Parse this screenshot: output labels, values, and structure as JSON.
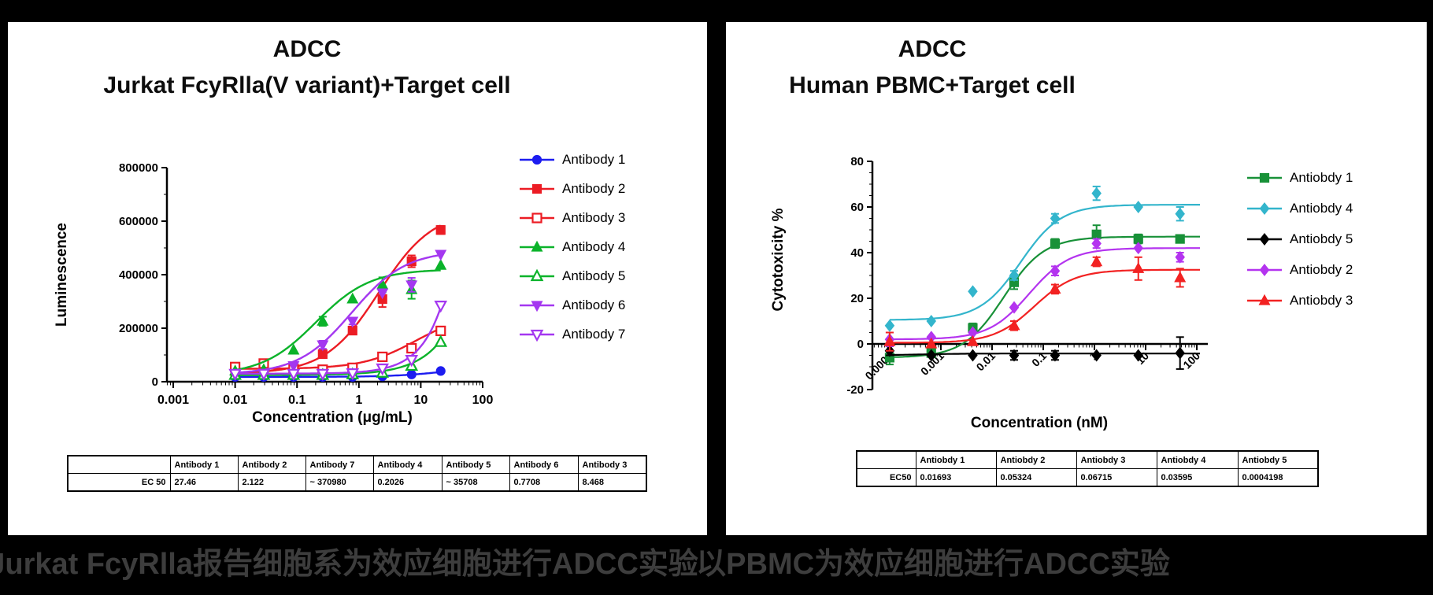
{
  "panels": {
    "left": {
      "title_line1": "ADCC",
      "title_line2": "Jurkat FcyRlla(V variant)+Target cell",
      "caption": "以Jurkat FcyRlla报告细胞系为效应细胞进行ADCC实验",
      "table": {
        "corner": "",
        "row_label": "EC 50",
        "headers": [
          "Antibody 1",
          "Antibody 2",
          "Antibody 7",
          "Antibody 4",
          "Antibody 5",
          "Antibody 6",
          "Antibody 3"
        ],
        "values": [
          "27.46",
          "2.122",
          "~ 370980",
          "0.2026",
          "~ 35708",
          "0.7708",
          "8.468"
        ]
      }
    },
    "right": {
      "title_line1": "ADCC",
      "title_line2": "Human PBMC+Target cell",
      "caption": "以PBMC为效应细胞进行ADCC实验",
      "table": {
        "corner": "",
        "row_label": "EC50",
        "headers": [
          "Antiobdy 1",
          "Antiobdy 2",
          "Antiobdy 3",
          "Antiobdy 4",
          "Antiobdy 5"
        ],
        "values": [
          "0.01693",
          "0.05324",
          "0.06715",
          "0.03595",
          "0.0004198"
        ]
      }
    }
  },
  "chart_data": [
    {
      "type": "scatter",
      "title": "ADCC Jurkat FcyRlla(V variant)+Target cell",
      "xlabel": "Concentration (μg/mL)",
      "ylabel": "Luminescence",
      "xscale": "log",
      "xlim": [
        0.00079,
        100
      ],
      "ylim": [
        0,
        800000
      ],
      "yticks": [
        0,
        200000,
        400000,
        600000,
        800000
      ],
      "ytick_labels": [
        "0",
        "200000",
        "400000",
        "600000",
        "800000"
      ],
      "yminor": 100000,
      "xticks": [
        0.001,
        0.01,
        0.1,
        1,
        10,
        100
      ],
      "xtick_labels": [
        "0.001",
        "0.01",
        "0.1",
        "1",
        "10",
        "100"
      ],
      "x": [
        0.01,
        0.029,
        0.088,
        0.26,
        0.79,
        2.4,
        7.1,
        21
      ],
      "curve_range": [
        0.0097,
        21
      ],
      "legend_position": "right",
      "grid": false,
      "series": [
        {
          "name": "Antibody 1",
          "color": "#1c1cf0",
          "marker": "circle",
          "filled": true,
          "values": [
            18000,
            18000,
            18000,
            18000,
            18000,
            20000,
            27000,
            40000
          ],
          "err": [
            0,
            0,
            0,
            0,
            0,
            0,
            0,
            0
          ],
          "fit": {
            "bottom": 18000,
            "top": 60000,
            "ec50": 27.46,
            "hill": 1
          }
        },
        {
          "name": "Antibody 2",
          "color": "#ec1c24",
          "marker": "square",
          "filled": true,
          "values": [
            35000,
            40000,
            48000,
            103000,
            191000,
            309000,
            450000,
            567000
          ],
          "err": [
            0,
            0,
            0,
            0,
            0,
            30000,
            22000,
            15000
          ],
          "fit": {
            "bottom": 30000,
            "top": 640000,
            "ec50": 2.122,
            "hill": 1
          }
        },
        {
          "name": "Antibody 3",
          "color": "#ec1c24",
          "marker": "square",
          "filled": false,
          "values": [
            55000,
            68000,
            48000,
            45000,
            52000,
            93000,
            125000,
            190000
          ],
          "err": [
            0,
            10000,
            0,
            0,
            0,
            0,
            0,
            0
          ],
          "fit": {
            "bottom": 48000,
            "top": 260000,
            "ec50": 8.468,
            "hill": 1
          }
        },
        {
          "name": "Antibody 4",
          "color": "#0bb32a",
          "marker": "triangle",
          "filled": true,
          "values": [
            40000,
            45000,
            118000,
            226000,
            309000,
            362000,
            344000,
            435000
          ],
          "err": [
            0,
            0,
            0,
            17000,
            0,
            28000,
            34000,
            0
          ],
          "fit": {
            "bottom": 25000,
            "top": 420000,
            "ec50": 0.2026,
            "hill": 1
          }
        },
        {
          "name": "Antibody 5",
          "color": "#0bb32a",
          "marker": "triangle",
          "filled": false,
          "values": [
            25000,
            25000,
            25000,
            25000,
            27000,
            33000,
            59000,
            148000
          ],
          "err": [
            0,
            0,
            0,
            0,
            0,
            0,
            0,
            0
          ],
          "fit": {
            "bottom": 25000,
            "top": 220000000,
            "ec50": 35708,
            "hill": 1
          }
        },
        {
          "name": "Antibody 6",
          "color": "#a437f0",
          "marker": "triangle-down",
          "filled": true,
          "values": [
            30000,
            32000,
            60000,
            138000,
            226000,
            332000,
            362000,
            476000
          ],
          "err": [
            0,
            0,
            0,
            15000,
            12000,
            0,
            26000,
            0
          ],
          "fit": {
            "bottom": 28000,
            "top": 490000,
            "ec50": 0.7708,
            "hill": 1
          }
        },
        {
          "name": "Antibody 7",
          "color": "#a437f0",
          "marker": "triangle-down",
          "filled": false,
          "values": [
            30000,
            30000,
            30000,
            30000,
            32000,
            50000,
            82000,
            285000
          ],
          "err": [
            0,
            0,
            0,
            0,
            0,
            0,
            0,
            0
          ],
          "fit": {
            "bottom": 30000,
            "top": 31000000000,
            "ec50": 370980,
            "hill": 1.2
          }
        }
      ]
    },
    {
      "type": "scatter",
      "title": "ADCC Human PBMC+Target cell",
      "xlabel": "Concentration (nM)",
      "ylabel": "Cytotoxicity %",
      "xscale": "log",
      "xlim": [
        4.6e-05,
        164
      ],
      "ylim": [
        -20,
        80
      ],
      "yticks": [
        -20,
        0,
        20,
        40,
        60,
        80
      ],
      "ytick_labels": [
        "-20",
        "0",
        "20",
        "40",
        "60",
        "80"
      ],
      "yminor": 5,
      "xticks": [
        0.0001,
        0.001,
        0.01,
        0.1,
        1,
        10,
        100
      ],
      "xtick_labels": [
        "0.0001",
        "0.001",
        "0.01",
        "0.1",
        "1",
        "10",
        "100"
      ],
      "x": [
        0.0001,
        0.00065,
        0.0042,
        0.027,
        0.17,
        1.1,
        7.2,
        47
      ],
      "curve_range": [
        0.0001,
        115
      ],
      "legend_position": "right",
      "grid": false,
      "series": [
        {
          "name": "Antiobdy 1",
          "color": "#189138",
          "marker": "square",
          "filled": true,
          "values": [
            -6,
            -4,
            7,
            27,
            44,
            48,
            46,
            46
          ],
          "err": [
            3,
            0,
            2,
            3,
            2,
            4,
            2,
            0
          ],
          "fit": {
            "bottom": -6,
            "top": 47,
            "ec50": 0.01693,
            "hill": 1.1
          }
        },
        {
          "name": "Antiobdy 4",
          "color": "#33b5cc",
          "marker": "diamond",
          "filled": true,
          "values": [
            8,
            10,
            23,
            30,
            55,
            66,
            60,
            57
          ],
          "err": [
            0,
            0,
            0,
            2,
            2,
            3,
            0,
            3
          ],
          "fit": {
            "bottom": 10.5,
            "top": 61,
            "ec50": 0.03595,
            "hill": 1.1
          }
        },
        {
          "name": "Antiobdy 5",
          "color": "#000000",
          "marker": "diamond",
          "filled": true,
          "values": [
            -3,
            -5,
            -5,
            -5,
            -5,
            -5,
            -5,
            -4
          ],
          "err": [
            2,
            0,
            0,
            2,
            2,
            0,
            0,
            7
          ],
          "fit": {
            "bottom": -5,
            "top": -4.2,
            "ec50": 0.0004198,
            "hill": 1
          }
        },
        {
          "name": "Antiobdy 2",
          "color": "#b434ef",
          "marker": "diamond",
          "filled": true,
          "values": [
            2,
            3,
            5,
            16,
            32,
            44,
            42,
            38
          ],
          "err": [
            3,
            0,
            0,
            0,
            2,
            2,
            0,
            2
          ],
          "fit": {
            "bottom": 2,
            "top": 42,
            "ec50": 0.05324,
            "hill": 1.1
          }
        },
        {
          "name": "Antiobdy 3",
          "color": "#f22222",
          "marker": "triangle",
          "filled": true,
          "values": [
            1,
            0,
            1,
            8,
            24,
            36,
            33,
            29
          ],
          "err": [
            4,
            0,
            0,
            2,
            2,
            2,
            5,
            4
          ],
          "fit": {
            "bottom": 0.5,
            "top": 32.5,
            "ec50": 0.06715,
            "hill": 1.1
          }
        }
      ]
    }
  ]
}
